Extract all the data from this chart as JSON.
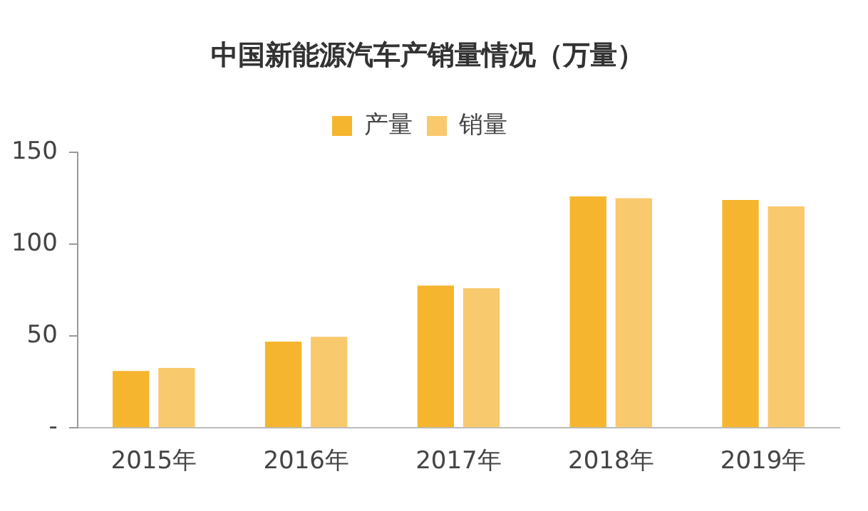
{
  "chart_data": {
    "type": "bar",
    "title": "中国新能源汽车产销量情况（万量）",
    "categories": [
      "2015年",
      "2016年",
      "2017年",
      "2018年",
      "2019年"
    ],
    "series": [
      {
        "name": "产量",
        "color": "#f6b52e",
        "values": [
          31,
          47,
          77.5,
          126,
          124
        ]
      },
      {
        "name": "销量",
        "color": "#f9c96d",
        "values": [
          32.6,
          49.6,
          76,
          125,
          120.6
        ]
      }
    ],
    "ylim": [
      0,
      150
    ],
    "yticks": [
      {
        "value": 0,
        "label": "-"
      },
      50,
      100,
      150
    ],
    "grid": false,
    "legend": "top"
  }
}
